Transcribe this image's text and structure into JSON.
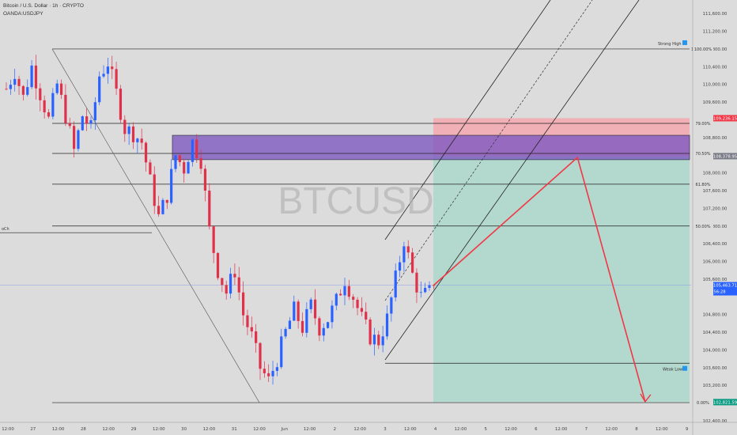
{
  "header": {
    "title": "Bitcoin / U.S. Dollar · 1h · CRYPTO",
    "subtitle": "OANDA:USDJPY"
  },
  "watermark": "BTCUSD",
  "chart_data": {
    "type": "candlestick",
    "title": "Bitcoin / U.S. Dollar · 1h · CRYPTO",
    "ylim": [
      102400,
      111800
    ],
    "y_ticks": [
      "111,600.00",
      "111,200.00",
      "110,800.00",
      "110,400.00",
      "110,000.00",
      "109,600.00",
      "108,800.00",
      "108,000.00",
      "107,600.00",
      "107,200.00",
      "106,800.00",
      "106,400.00",
      "106,000.00",
      "105,600.00",
      "104,800.00",
      "104,400.00",
      "104,000.00",
      "103,600.00",
      "103,200.00",
      "102,800.00",
      "102,400.00"
    ],
    "y_tick_values": [
      111600,
      111200,
      110800,
      110400,
      110000,
      109600,
      108800,
      108000,
      107600,
      107200,
      106800,
      106400,
      106000,
      105600,
      104800,
      104400,
      104000,
      103600,
      103200,
      102800,
      102400
    ],
    "x_ticks": [
      "12:00",
      "27",
      "12:00",
      "28",
      "12:00",
      "29",
      "12:00",
      "30",
      "12:00",
      "31",
      "12:00",
      "Jun",
      "12:00",
      "2",
      "12:00",
      "3",
      "12:00",
      "4",
      "12:00",
      "5",
      "12:00",
      "6",
      "12:00",
      "7",
      "12:00",
      "8",
      "12:00",
      "9"
    ],
    "candle_anchors": [
      {
        "t": 0,
        "p": 109900
      },
      {
        "t": 2,
        "p": 110300
      },
      {
        "t": 4,
        "p": 109700
      },
      {
        "t": 6,
        "p": 110400
      },
      {
        "t": 8,
        "p": 109800
      },
      {
        "t": 10,
        "p": 109200
      },
      {
        "t": 12,
        "p": 110000
      },
      {
        "t": 14,
        "p": 109300
      },
      {
        "t": 16,
        "p": 108500
      },
      {
        "t": 18,
        "p": 109300
      },
      {
        "t": 20,
        "p": 109000
      },
      {
        "t": 22,
        "p": 110200
      },
      {
        "t": 24,
        "p": 110500
      },
      {
        "t": 26,
        "p": 109800
      },
      {
        "t": 28,
        "p": 109000
      },
      {
        "t": 30,
        "p": 108900
      },
      {
        "t": 32,
        "p": 108700
      },
      {
        "t": 34,
        "p": 107800
      },
      {
        "t": 36,
        "p": 107000
      },
      {
        "t": 38,
        "p": 107500
      },
      {
        "t": 40,
        "p": 108400
      },
      {
        "t": 42,
        "p": 108100
      },
      {
        "t": 44,
        "p": 108700
      },
      {
        "t": 46,
        "p": 108300
      },
      {
        "t": 48,
        "p": 106700
      },
      {
        "t": 50,
        "p": 105800
      },
      {
        "t": 52,
        "p": 105300
      },
      {
        "t": 54,
        "p": 105800
      },
      {
        "t": 56,
        "p": 104800
      },
      {
        "t": 58,
        "p": 104300
      },
      {
        "t": 60,
        "p": 103600
      },
      {
        "t": 62,
        "p": 103300
      },
      {
        "t": 64,
        "p": 103800
      },
      {
        "t": 66,
        "p": 104400
      },
      {
        "t": 68,
        "p": 104900
      },
      {
        "t": 70,
        "p": 104500
      },
      {
        "t": 72,
        "p": 105000
      },
      {
        "t": 74,
        "p": 104500
      },
      {
        "t": 76,
        "p": 104700
      },
      {
        "t": 78,
        "p": 105100
      },
      {
        "t": 80,
        "p": 105600
      },
      {
        "t": 82,
        "p": 105200
      },
      {
        "t": 84,
        "p": 104700
      },
      {
        "t": 86,
        "p": 104300
      },
      {
        "t": 88,
        "p": 104200
      },
      {
        "t": 90,
        "p": 104700
      },
      {
        "t": 92,
        "p": 105600
      },
      {
        "t": 94,
        "p": 106500
      },
      {
        "t": 96,
        "p": 105700
      },
      {
        "t": 98,
        "p": 105200
      },
      {
        "t": 100,
        "p": 105300
      },
      {
        "t": 101,
        "p": 105460
      }
    ],
    "fib_levels": [
      {
        "label": "100.00%",
        "price": 110800
      },
      {
        "label": "79.00%",
        "price": 109120
      },
      {
        "label": "70.50%",
        "price": 108440
      },
      {
        "label": "61.80%",
        "price": 107745
      },
      {
        "label": "50.00%",
        "price": 106800
      },
      {
        "label": "0.00%",
        "price": 102810
      }
    ],
    "annotations": {
      "strong_high": "Strong High",
      "weak_low": "Weak Low",
      "left_label": "oCh"
    },
    "order_block": {
      "top": 108850,
      "bottom": 108300
    },
    "position": {
      "stop": 109236.15,
      "entry": 108378.95,
      "target": 102821.59
    },
    "price_tags": [
      {
        "text": "109,236.15",
        "price": 109236.15,
        "color": "#f23645"
      },
      {
        "text": "108,378.95",
        "price": 108378.95,
        "color": "#787b86"
      },
      {
        "text": "105,463.71",
        "price": 105463.71,
        "color": "#2962ff"
      },
      {
        "text": "102,821.59",
        "price": 102821.59,
        "color": "#089981"
      }
    ],
    "current_price": {
      "value": "105,463.71",
      "countdown": "56:28"
    },
    "projection_path": [
      {
        "t": 101,
        "p": 105460
      },
      {
        "t": 135,
        "p": 108350
      },
      {
        "t": 151,
        "p": 102830
      }
    ],
    "colors": {
      "up": "#2962ff",
      "down": "#e0314b",
      "order_block": "#7e57c2",
      "stop_zone": "#f7a1a8",
      "target_zone": "#a9d7c9",
      "projection": "#f23645"
    }
  }
}
